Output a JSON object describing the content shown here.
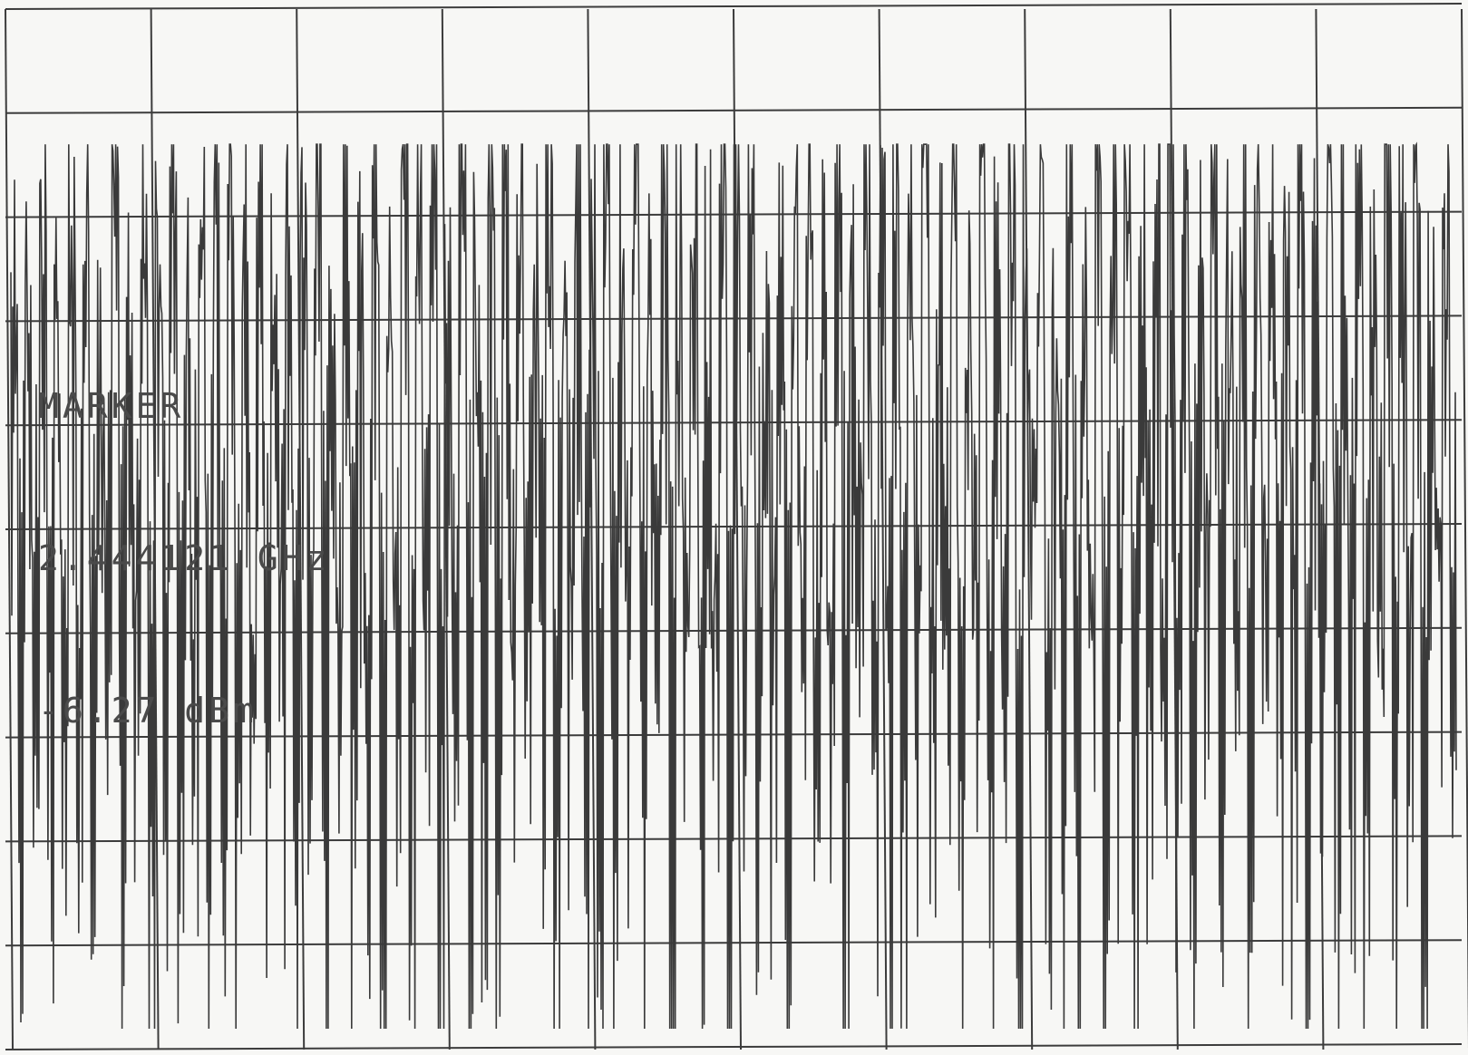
{
  "marker": {
    "title": "MARKER",
    "frequency": "2.444121 GHz",
    "level": "-6.27 dBm"
  },
  "colors": {
    "paper": "#f7f7f5",
    "grid": "#3c3c3c",
    "trace": "#3a3a3a",
    "text": "#4a4a4a"
  },
  "chart_data": {
    "type": "line",
    "title": "",
    "xlabel": "",
    "ylabel": "",
    "grid": true,
    "grid_divisions": {
      "x": 10,
      "y": 10
    },
    "ylim": [
      -10,
      0
    ],
    "description_of_trace": "dense noise-like spectrum trace",
    "series": [
      {
        "values": [
          -4.1,
          -8.2,
          -3.9,
          -6.5,
          -2.8,
          -7.9,
          -4.6,
          -9.1,
          -3.4,
          -6.8,
          -2.6,
          -8.7,
          -4.2,
          -7.2,
          -3.1,
          -9.4,
          -3.8,
          -6.3,
          -2.9,
          -8.1,
          -3.5,
          -7.6,
          -2.5,
          -9.0,
          -4.4,
          -6.9,
          -2.7,
          -8.4,
          -3.2,
          -7.3,
          -2.4,
          -9.2,
          -3.6,
          -6.6,
          -2.9,
          -8.8,
          -4.0,
          -7.4,
          -2.6,
          -8.5,
          -3.3,
          -7.1,
          -2.5,
          -9.3,
          -3.7,
          -6.4,
          -2.8,
          -8.6,
          -4.3,
          -7.8,
          -3.0,
          -9.5,
          -3.9,
          -6.7,
          -2.7,
          -8.3,
          -3.4,
          -7.5,
          -2.6,
          -9.1,
          -3.8,
          -6.2,
          -2.5,
          -8.9,
          -4.1,
          -7.7,
          -3.2,
          -9.0,
          -3.5,
          -6.8,
          -2.4,
          -8.2,
          -3.6,
          -7.0,
          -2.9,
          -9.4,
          -4.5,
          -6.5,
          -3.1,
          -8.7,
          -3.3,
          -7.9,
          -2.8,
          -9.2,
          -3.7,
          -6.6,
          -2.6,
          -8.4,
          -4.0,
          -7.2,
          -3.0,
          -9.6,
          -3.4,
          -6.9,
          -2.7,
          -8.0,
          -3.9,
          -7.4,
          -2.5,
          -9.3,
          -3.2,
          -6.3,
          -2.9,
          -8.8,
          -4.2,
          -7.6,
          -3.1,
          -9.0,
          -3.6,
          -6.7,
          -2.6,
          -8.5,
          -3.8,
          -7.1,
          -2.8,
          -9.5,
          -4.4,
          -6.4,
          -3.0,
          -8.6,
          -3.5,
          -7.8,
          -2.7,
          -9.1,
          -3.3,
          -6.8,
          -2.5,
          -8.3,
          -4.1,
          -7.3,
          -2.9,
          -9.4,
          -3.7,
          -6.5,
          -3.2,
          -8.9,
          -3.4,
          -7.5,
          -2.6,
          -9.2,
          -3.9,
          -6.2,
          -2.8,
          -8.1,
          -4.3,
          -7.7,
          -3.0,
          -9.7,
          -3.6,
          -6.6,
          -2.4,
          -8.7,
          -3.5,
          -7.0,
          -2.7,
          -9.0,
          -4.0,
          -6.9,
          -3.1,
          -8.4,
          -3.2,
          -7.9,
          -2.5,
          -9.3,
          -3.8,
          -6.3,
          -2.9,
          -8.6,
          -4.2,
          -7.2,
          -3.3,
          -9.5,
          -3.4,
          -6.7,
          -2.6,
          -8.2,
          -3.7,
          -7.6,
          -2.8,
          -9.1,
          -4.1,
          -6.4,
          -3.0,
          -8.8,
          -3.5,
          -7.4,
          -2.7,
          -9.6,
          -3.9,
          -6.5,
          -2.5,
          -8.5,
          -3.6,
          -7.1,
          -3.2,
          -9.2,
          -4.4,
          -6.8,
          -2.9,
          -8.0
        ]
      }
    ]
  }
}
